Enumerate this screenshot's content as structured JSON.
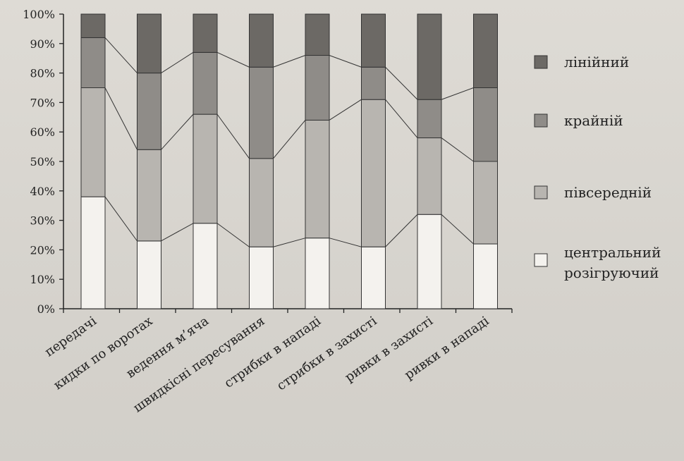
{
  "chart_data": {
    "type": "bar",
    "stacked": true,
    "percent": true,
    "categories": [
      "передачі",
      "кидки по воротах",
      "ведення м’яча",
      "швидкісні пересування",
      "стрибки в нападі",
      "стрибки в захисті",
      "ривки в захисті",
      "ривки в нападі"
    ],
    "series": [
      {
        "name": "центральний розігруючий",
        "color": "#f4f2ee",
        "values": [
          38,
          23,
          29,
          21,
          24,
          21,
          32,
          22
        ]
      },
      {
        "name": "півсередній",
        "color": "#b8b5b0",
        "values": [
          37,
          31,
          37,
          30,
          40,
          50,
          26,
          28
        ]
      },
      {
        "name": "крайній",
        "color": "#8f8c88",
        "values": [
          17,
          26,
          21,
          31,
          22,
          11,
          13,
          25
        ]
      },
      {
        "name": "лінійний",
        "color": "#6c6965",
        "values": [
          8,
          20,
          13,
          18,
          14,
          18,
          29,
          25
        ]
      }
    ],
    "yticks": [
      "0%",
      "10%",
      "20%",
      "30%",
      "40%",
      "50%",
      "60%",
      "70%",
      "80%",
      "90%",
      "100%"
    ],
    "ylim": [
      0,
      100
    ],
    "legend_position": "right",
    "connector_lines": true
  }
}
